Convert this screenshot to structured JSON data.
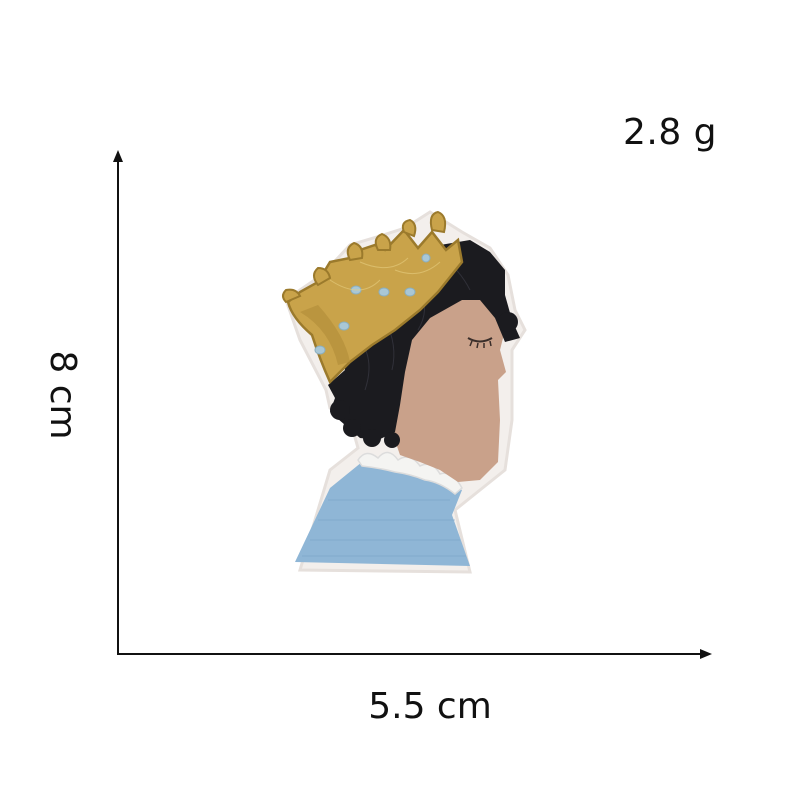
{
  "product": {
    "weight": "2.8 g",
    "width": "5.5 cm",
    "height": "8 cm"
  },
  "patch": {
    "subject": "embroidered patch of a profile with a crown",
    "colors": {
      "hair": "#1b1b1f",
      "skin": "#c9a18a",
      "crown": "#c9a34a",
      "crown_shadow": "#9b7a2c",
      "gems": "#a9c7d6",
      "shirt": "#8fb6d6",
      "collar": "#f2f2f0",
      "border": "#e9e4e0"
    }
  }
}
